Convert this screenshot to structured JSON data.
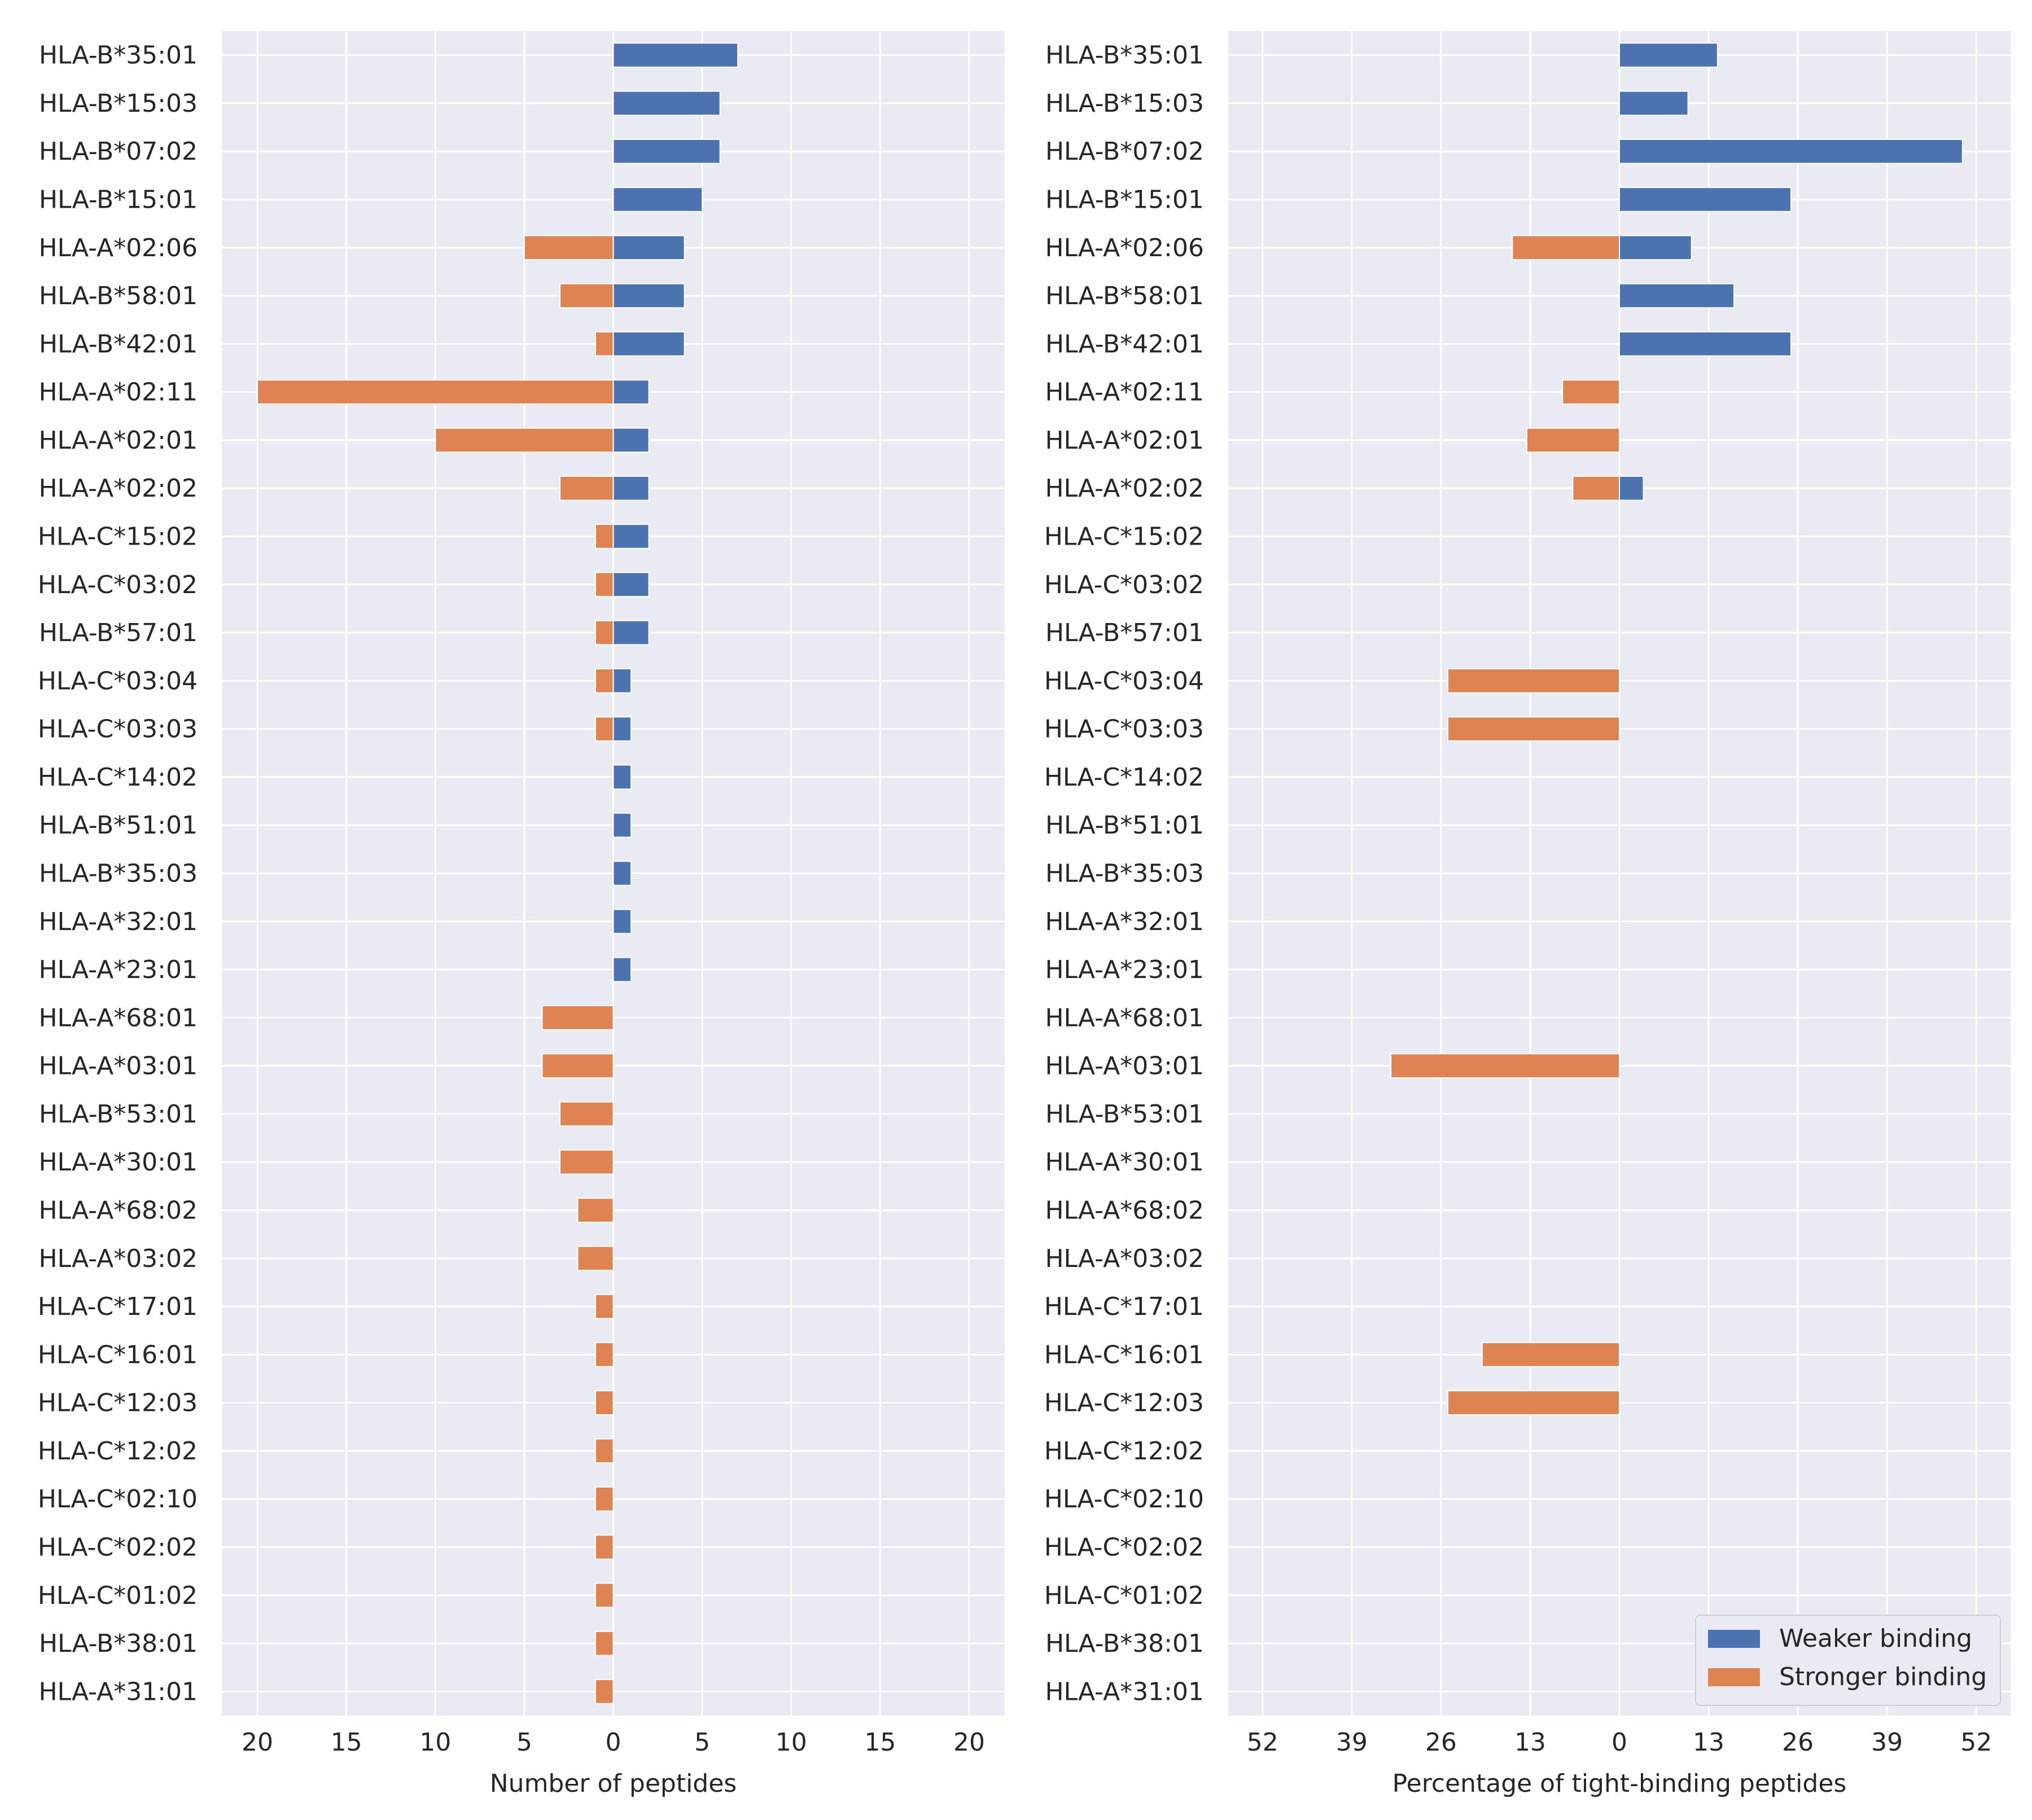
{
  "chart_data": [
    {
      "type": "bar",
      "orientation": "horizontal",
      "categories": [
        "HLA-B*35:01",
        "HLA-B*15:03",
        "HLA-B*07:02",
        "HLA-B*15:01",
        "HLA-A*02:06",
        "HLA-B*58:01",
        "HLA-B*42:01",
        "HLA-A*02:11",
        "HLA-A*02:01",
        "HLA-A*02:02",
        "HLA-C*15:02",
        "HLA-C*03:02",
        "HLA-B*57:01",
        "HLA-C*03:04",
        "HLA-C*03:03",
        "HLA-C*14:02",
        "HLA-B*51:01",
        "HLA-B*35:03",
        "HLA-A*32:01",
        "HLA-A*23:01",
        "HLA-A*68:01",
        "HLA-A*03:01",
        "HLA-B*53:01",
        "HLA-A*30:01",
        "HLA-A*68:02",
        "HLA-A*03:02",
        "HLA-C*17:01",
        "HLA-C*16:01",
        "HLA-C*12:03",
        "HLA-C*12:02",
        "HLA-C*02:10",
        "HLA-C*02:02",
        "HLA-C*01:02",
        "HLA-B*38:01",
        "HLA-A*31:01"
      ],
      "series": [
        {
          "name": "Weaker binding",
          "color": "#4c72b0",
          "values": [
            7,
            6,
            6,
            5,
            4,
            4,
            4,
            2,
            2,
            2,
            2,
            2,
            2,
            1,
            1,
            1,
            1,
            1,
            1,
            1,
            0,
            0,
            0,
            0,
            0,
            0,
            0,
            0,
            0,
            0,
            0,
            0,
            0,
            0,
            0
          ]
        },
        {
          "name": "Stronger binding",
          "color": "#dd8452",
          "values": [
            0,
            0,
            0,
            0,
            -5,
            -3,
            -1,
            -20,
            -10,
            -3,
            -1,
            -1,
            -1,
            -1,
            -1,
            0,
            0,
            0,
            0,
            0,
            -4,
            -4,
            -3,
            -3,
            -2,
            -2,
            -1,
            -1,
            -1,
            -1,
            -1,
            -1,
            -1,
            -1,
            -1
          ]
        }
      ],
      "xlim": [
        -22,
        22
      ],
      "xticks": [
        -20,
        -15,
        -10,
        -5,
        0,
        5,
        10,
        15,
        20
      ],
      "xticklabels": [
        "20",
        "15",
        "10",
        "5",
        "0",
        "5",
        "10",
        "15",
        "20"
      ],
      "xlabel": "Number of peptides",
      "ylabel": "",
      "grid": true
    },
    {
      "type": "bar",
      "orientation": "horizontal",
      "categories": [
        "HLA-B*35:01",
        "HLA-B*15:03",
        "HLA-B*07:02",
        "HLA-B*15:01",
        "HLA-A*02:06",
        "HLA-B*58:01",
        "HLA-B*42:01",
        "HLA-A*02:11",
        "HLA-A*02:01",
        "HLA-A*02:02",
        "HLA-C*15:02",
        "HLA-C*03:02",
        "HLA-B*57:01",
        "HLA-C*03:04",
        "HLA-C*03:03",
        "HLA-C*14:02",
        "HLA-B*51:01",
        "HLA-B*35:03",
        "HLA-A*32:01",
        "HLA-A*23:01",
        "HLA-A*68:01",
        "HLA-A*03:01",
        "HLA-B*53:01",
        "HLA-A*30:01",
        "HLA-A*68:02",
        "HLA-A*03:02",
        "HLA-C*17:01",
        "HLA-C*16:01",
        "HLA-C*12:03",
        "HLA-C*12:02",
        "HLA-C*02:10",
        "HLA-C*02:02",
        "HLA-C*01:02",
        "HLA-B*38:01",
        "HLA-A*31:01"
      ],
      "series": [
        {
          "name": "Weaker binding",
          "color": "#4c72b0",
          "values": [
            14.3,
            10,
            50,
            25,
            10.5,
            16.7,
            25,
            0,
            0,
            3.5,
            0,
            0,
            0,
            0,
            0,
            0,
            0,
            0,
            0,
            0,
            0,
            0,
            0,
            0,
            0,
            0,
            0,
            0,
            0,
            0,
            0,
            0,
            0,
            0,
            0
          ]
        },
        {
          "name": "Stronger binding",
          "color": "#dd8452",
          "values": [
            0,
            0,
            0,
            0,
            -15.6,
            0,
            0,
            -8.3,
            -13.5,
            -6.8,
            0,
            0,
            0,
            -25,
            -25,
            0,
            0,
            0,
            0,
            0,
            0,
            -33.3,
            0,
            0,
            0,
            0,
            0,
            -20,
            -25,
            0,
            0,
            0,
            0,
            0,
            0
          ]
        }
      ],
      "xlim": [
        -57,
        57
      ],
      "xticks": [
        -52,
        -39,
        -26,
        -13,
        0,
        13,
        26,
        39,
        52
      ],
      "xticklabels": [
        "52",
        "39",
        "26",
        "13",
        "0",
        "13",
        "26",
        "39",
        "52"
      ],
      "xlabel": "Percentage of tight-binding peptides",
      "ylabel": "",
      "grid": true,
      "legend": {
        "position": "lower-right",
        "entries": [
          "Weaker binding",
          "Stronger binding"
        ]
      }
    }
  ]
}
